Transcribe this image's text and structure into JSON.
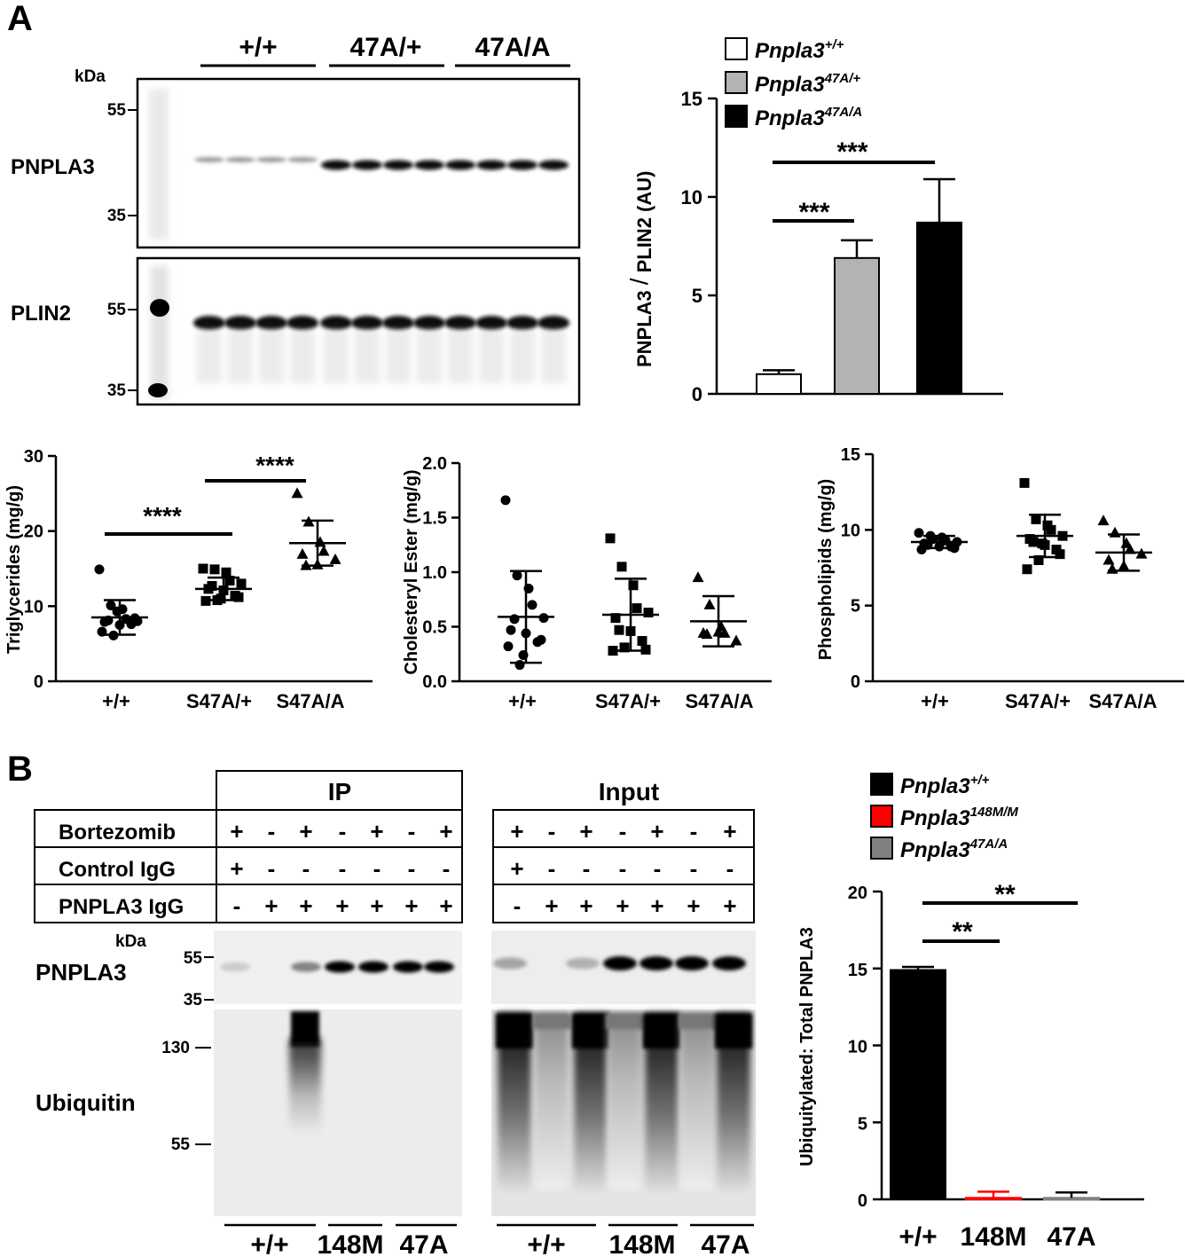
{
  "panel_a": {
    "label": "A",
    "blot": {
      "groups": [
        "+/+",
        "47A/+",
        "47A/A"
      ],
      "kda_label": "kDa",
      "pnpla3": {
        "label": "PNPLA3",
        "ticks": [
          "55",
          "35"
        ]
      },
      "plin2": {
        "label": "PLIN2",
        "ticks": [
          "55",
          "35"
        ]
      }
    },
    "bar": {
      "ylabel_part1": "PNPLA3",
      "ylabel_part2": "PLIN2 (AU)",
      "ylabel_sep": "/",
      "legend": [
        {
          "base": "Pnpla3",
          "sup": "+/+",
          "color": "#ffffff"
        },
        {
          "base": "Pnpla3",
          "sup": "47A/+",
          "color": "#b3b3b3"
        },
        {
          "base": "Pnpla3",
          "sup": "47A/A",
          "color": "#000000"
        }
      ],
      "sig": [
        "***",
        "***"
      ]
    },
    "scatter_labels": {
      "tg_ylabel": "Triglycerides (mg/g)",
      "ce_ylabel": "Cholesteryl Ester (mg/g)",
      "pl_ylabel": "Phospholipids (mg/g)",
      "tg_sig": [
        "****",
        "****"
      ]
    }
  },
  "panel_b": {
    "label": "B",
    "ip_title": "IP",
    "input_title": "Input",
    "rows": [
      {
        "label": "Bortezomib",
        "signs": [
          "+",
          "-",
          "+",
          "-",
          "+",
          "-",
          "+"
        ]
      },
      {
        "label": "Control IgG",
        "signs": [
          "+",
          "-",
          "-",
          "-",
          "-",
          "-",
          "-"
        ]
      },
      {
        "label": "PNPLA3 IgG",
        "signs": [
          "-",
          "+",
          "+",
          "+",
          "+",
          "+",
          "+"
        ]
      }
    ],
    "kda_label": "kDa",
    "pnpla3_label": "PNPLA3",
    "pnpla3_ticks": [
      "55",
      "35"
    ],
    "ubiquitin_label": "Ubiquitin",
    "ub_ticks": [
      "130",
      "55"
    ],
    "bottom_groups": [
      "+/+",
      "148M",
      "47A"
    ],
    "bar": {
      "ylabel": "Ubiquitylated: Total PNPLA3",
      "legend": [
        {
          "base": "Pnpla3",
          "sup": "+/+",
          "color": "#000000"
        },
        {
          "base": "Pnpla3",
          "sup": "148M/M",
          "color": "#ff0000"
        },
        {
          "base": "Pnpla3",
          "sup": "47A/A",
          "color": "#808080"
        }
      ],
      "sig": [
        "**",
        "**"
      ]
    }
  },
  "chart_data": [
    {
      "type": "bar",
      "categories": [
        "Pnpla3+/+",
        "Pnpla3 47A/+",
        "Pnpla3 47A/A"
      ],
      "values": [
        1.0,
        6.9,
        8.7
      ],
      "errors": [
        0.2,
        0.9,
        2.2
      ],
      "ylabel": "PNPLA3 / PLIN2 (AU)",
      "ylim": [
        0,
        15
      ],
      "yticks": [
        0,
        5,
        10,
        15
      ]
    },
    {
      "type": "scatter",
      "categories": [
        "+/+",
        "S47A/+",
        "S47A/A"
      ],
      "ylabel": "Triglycerides (mg/g)",
      "ylim": [
        0,
        30
      ],
      "yticks": [
        0,
        10,
        20,
        30
      ],
      "series": [
        {
          "values": [
            14.9,
            10.1,
            9.6,
            8.3,
            8.0,
            7.9,
            8.1,
            7.5,
            7.6,
            8.4,
            6.6,
            6.1,
            9.3
          ],
          "mean": 8.5,
          "sd": 2.3
        },
        {
          "values": [
            15.0,
            14.9,
            14.5,
            13.4,
            13.0,
            12.3,
            12.7,
            12.1,
            11.4,
            11.2,
            10.7,
            10.8,
            11.0
          ],
          "mean": 12.3,
          "sd": 1.5
        },
        {
          "values": [
            25.0,
            21.2,
            18.5,
            17.3,
            16.2,
            16.9,
            15.4,
            15.5
          ],
          "mean": 18.4,
          "sd": 3.0
        }
      ]
    },
    {
      "type": "scatter",
      "categories": [
        "+/+",
        "S47A/+",
        "S47A/A"
      ],
      "ylabel": "Cholesteryl Ester (mg/g)",
      "ylim": [
        0,
        2.0
      ],
      "yticks": [
        0.0,
        0.5,
        1.0,
        1.5,
        2.0
      ],
      "series": [
        {
          "values": [
            1.66,
            0.97,
            0.85,
            0.7,
            0.58,
            0.47,
            0.57,
            0.44,
            0.36,
            0.38,
            0.32,
            0.15,
            0.24
          ],
          "mean": 0.59,
          "sd": 0.42
        },
        {
          "values": [
            1.31,
            1.05,
            0.88,
            0.67,
            0.63,
            0.58,
            0.47,
            0.46,
            0.37,
            0.29,
            0.28,
            0.31
          ],
          "mean": 0.61,
          "sd": 0.33
        },
        {
          "values": [
            0.95,
            0.7,
            0.5,
            0.44,
            0.37,
            0.44,
            0.43,
            0.45
          ],
          "mean": 0.55,
          "sd": 0.23
        }
      ]
    },
    {
      "type": "scatter",
      "categories": [
        "+/+",
        "S47A/+",
        "S47A/A"
      ],
      "ylabel": "Phospholipids (mg/g)",
      "ylim": [
        0,
        15
      ],
      "yticks": [
        0,
        5,
        10,
        15
      ],
      "series": [
        {
          "values": [
            9.8,
            9.6,
            9.5,
            9.3,
            9.2,
            9.1,
            9.0,
            8.9,
            8.9,
            8.8,
            8.7,
            9.4
          ],
          "mean": 9.2,
          "sd": 0.4
        },
        {
          "values": [
            13.1,
            10.7,
            10.3,
            10.0,
            9.6,
            9.4,
            9.2,
            9.0,
            8.7,
            8.4,
            7.4,
            8.0,
            9.1
          ],
          "mean": 9.6,
          "sd": 1.4
        },
        {
          "values": [
            10.6,
            9.8,
            9.1,
            8.7,
            8.4,
            8.0,
            7.4,
            7.6
          ],
          "mean": 8.5,
          "sd": 1.2
        }
      ]
    },
    {
      "type": "bar",
      "categories": [
        "+/+",
        "148M",
        "47A"
      ],
      "values": [
        14.9,
        0.1,
        0.1
      ],
      "errors": [
        0.2,
        0.4,
        0.35
      ],
      "colors": [
        "#000000",
        "#ff0000",
        "#808080"
      ],
      "ylabel": "Ubiquitylated: Total PNPLA3",
      "ylim": [
        0,
        20
      ],
      "yticks": [
        0,
        5,
        10,
        15,
        20
      ]
    }
  ]
}
